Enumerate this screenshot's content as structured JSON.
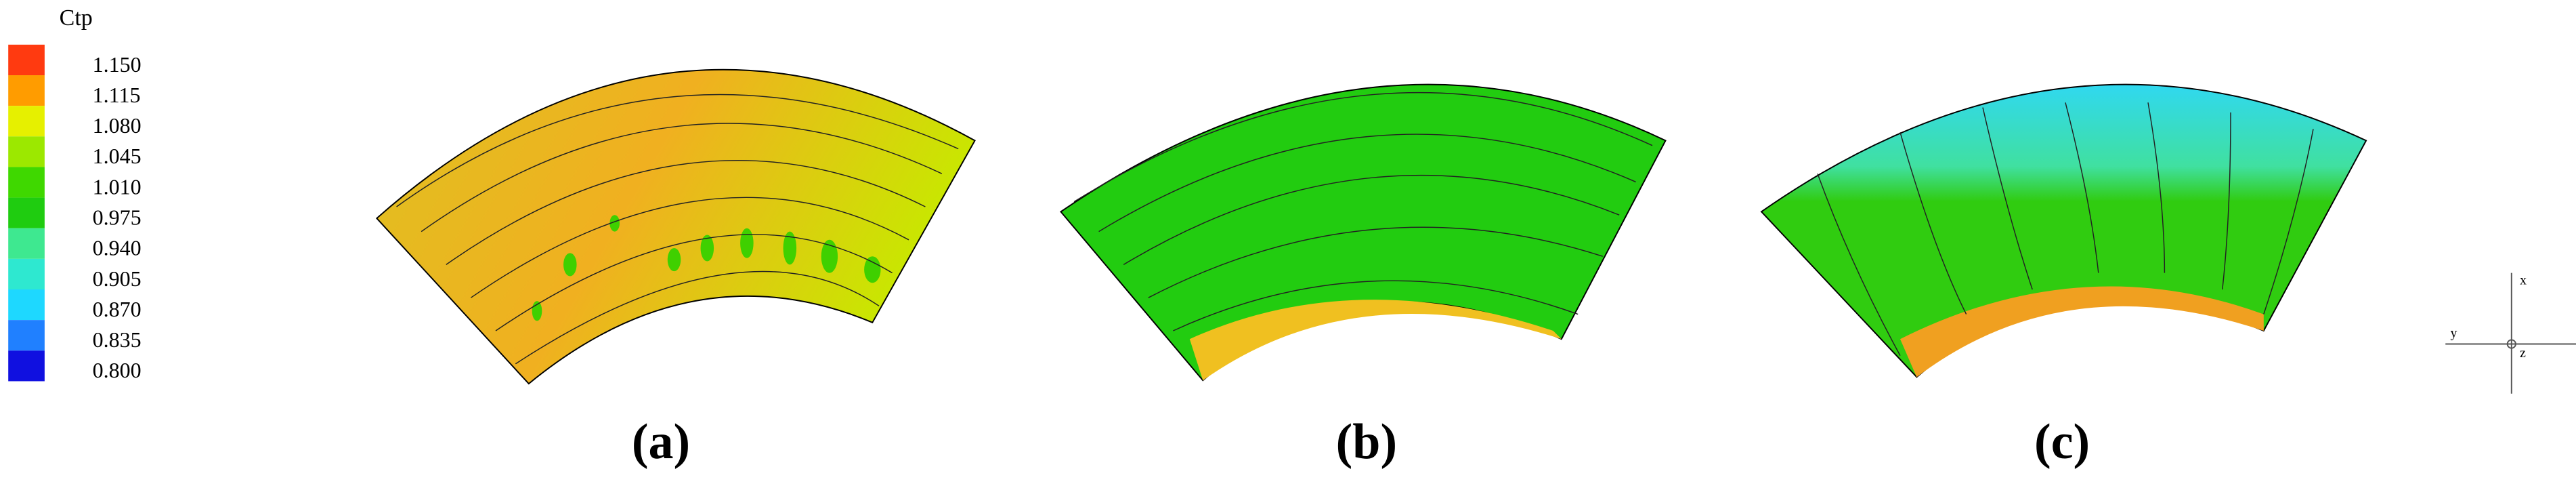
{
  "legend": {
    "title": "Ctp",
    "levels": [
      {
        "label": "1.150",
        "color": "#ff3a10"
      },
      {
        "label": "1.115",
        "color": "#ff9c00"
      },
      {
        "label": "1.080",
        "color": "#e6f000"
      },
      {
        "label": "1.045",
        "color": "#9ce800"
      },
      {
        "label": "1.010",
        "color": "#3fd800"
      },
      {
        "label": "0.975",
        "color": "#1fcc10"
      },
      {
        "label": "0.940",
        "color": "#3ee890"
      },
      {
        "label": "0.905",
        "color": "#2ee8d0"
      },
      {
        "label": "0.870",
        "color": "#1ed8ff"
      },
      {
        "label": "0.835",
        "color": "#2080ff"
      },
      {
        "label": "0.800",
        "color": "#1010e0"
      }
    ]
  },
  "panels": [
    {
      "label": "(a)"
    },
    {
      "label": "(b)"
    },
    {
      "label": "(c)"
    }
  ],
  "axes_triad": {
    "x": "x",
    "y": "y",
    "z": "z"
  }
}
